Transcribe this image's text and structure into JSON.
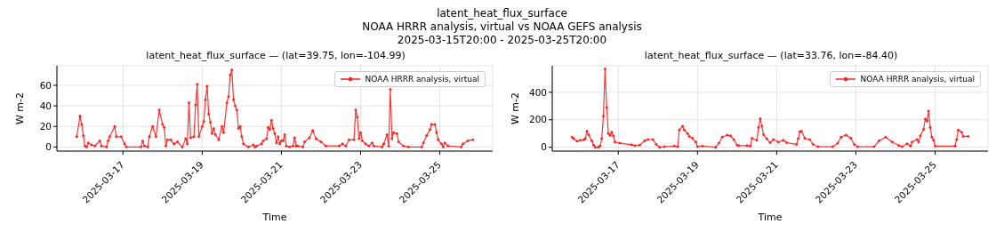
{
  "chart_data": [
    {
      "type": "line",
      "title": "latent_heat_flux_surface — (lat=39.75, lon=-104.99)",
      "annotations": [
        "latent_heat_flux_surface",
        "NOAA HRRR analysis, virtual vs NOAA GEFS analysis",
        "2025-03-15T20:00 - 2025-03-25T20:00"
      ],
      "xlabel": "Time",
      "ylabel": "W m-2",
      "xlim": [
        "2025-03-15T08:00",
        "2025-03-26T08:00"
      ],
      "xticks": [
        "2025-03-17",
        "2025-03-19",
        "2025-03-21",
        "2025-03-23",
        "2025-03-25"
      ],
      "ylim": [
        -4,
        79
      ],
      "yticks": [
        0,
        20,
        40,
        60
      ],
      "grid": true,
      "legend": "top right",
      "marker": "circle",
      "line_style": "solid",
      "series": [
        {
          "name": "NOAA HRRR analysis, virtual",
          "color": "#ff1f1f",
          "x": [
            "2025-03-15T20:00",
            "2025-03-15T22:00",
            "2025-03-15T23:00",
            "2025-03-16T00:00",
            "2025-03-16T01:00",
            "2025-03-16T02:00",
            "2025-03-16T03:00",
            "2025-03-16T05:00",
            "2025-03-16T07:00",
            "2025-03-16T10:00",
            "2025-03-16T11:00",
            "2025-03-16T14:00",
            "2025-03-16T15:00",
            "2025-03-16T16:00",
            "2025-03-16T19:00",
            "2025-03-16T20:00",
            "2025-03-16T23:00",
            "2025-03-17T01:00",
            "2025-03-17T02:00",
            "2025-03-17T11:00",
            "2025-03-17T12:00",
            "2025-03-17T13:00",
            "2025-03-17T15:00",
            "2025-03-17T16:00",
            "2025-03-17T18:00",
            "2025-03-17T20:00",
            "2025-03-17T22:00",
            "2025-03-18T00:00",
            "2025-03-18T01:00",
            "2025-03-18T02:00",
            "2025-03-18T03:00",
            "2025-03-18T05:00",
            "2025-03-18T07:00",
            "2025-03-18T09:00",
            "2025-03-18T12:00",
            "2025-03-18T14:00",
            "2025-03-18T15:00",
            "2025-03-18T16:00",
            "2025-03-18T17:00",
            "2025-03-18T19:00",
            "2025-03-18T20:00",
            "2025-03-18T21:00",
            "2025-03-18T22:00",
            "2025-03-19T00:00",
            "2025-03-19T01:00",
            "2025-03-19T02:00",
            "2025-03-19T03:00",
            "2025-03-19T04:00",
            "2025-03-19T05:00",
            "2025-03-19T06:00",
            "2025-03-19T07:00",
            "2025-03-19T08:00",
            "2025-03-19T10:00",
            "2025-03-19T12:00",
            "2025-03-19T13:00",
            "2025-03-19T15:00",
            "2025-03-19T16:00",
            "2025-03-19T17:00",
            "2025-03-19T18:00",
            "2025-03-19T19:00",
            "2025-03-19T20:00",
            "2025-03-19T21:00",
            "2025-03-19T22:00",
            "2025-03-19T23:00",
            "2025-03-20T00:00",
            "2025-03-20T01:00",
            "2025-03-20T04:00",
            "2025-03-20T07:00",
            "2025-03-20T08:00",
            "2025-03-20T09:00",
            "2025-03-20T12:00",
            "2025-03-20T13:00",
            "2025-03-20T15:00",
            "2025-03-20T16:00",
            "2025-03-20T17:00",
            "2025-03-20T18:00",
            "2025-03-20T19:00",
            "2025-03-20T20:00",
            "2025-03-20T21:00",
            "2025-03-20T22:00",
            "2025-03-20T23:00",
            "2025-03-21T00:00",
            "2025-03-21T01:00",
            "2025-03-21T02:00",
            "2025-03-21T03:00",
            "2025-03-21T05:00",
            "2025-03-21T07:00",
            "2025-03-21T08:00",
            "2025-03-21T09:00",
            "2025-03-21T10:00",
            "2025-03-21T13:00",
            "2025-03-21T14:00",
            "2025-03-21T17:00",
            "2025-03-21T19:00",
            "2025-03-21T21:00",
            "2025-03-22T00:00",
            "2025-03-22T03:00",
            "2025-03-22T11:00",
            "2025-03-22T13:00",
            "2025-03-22T15:00",
            "2025-03-22T17:00",
            "2025-03-22T20:00",
            "2025-03-22T21:00",
            "2025-03-22T22:00",
            "2025-03-22T23:00",
            "2025-03-23T00:00",
            "2025-03-23T01:00",
            "2025-03-23T03:00",
            "2025-03-23T05:00",
            "2025-03-23T07:00",
            "2025-03-23T08:00",
            "2025-03-23T13:00",
            "2025-03-23T14:00",
            "2025-03-23T16:00",
            "2025-03-23T17:00",
            "2025-03-23T18:00",
            "2025-03-23T19:00",
            "2025-03-23T20:00",
            "2025-03-23T22:00",
            "2025-03-23T23:00",
            "2025-03-24T02:00",
            "2025-03-24T05:00",
            "2025-03-24T13:00",
            "2025-03-24T14:00",
            "2025-03-24T16:00",
            "2025-03-24T18:00",
            "2025-03-24T19:00",
            "2025-03-24T21:00",
            "2025-03-24T22:00",
            "2025-03-24T23:00",
            "2025-03-25T01:00",
            "2025-03-25T02:00",
            "2025-03-25T03:00",
            "2025-03-25T05:00",
            "2025-03-25T13:00",
            "2025-03-25T14:00",
            "2025-03-25T17:00",
            "2025-03-25T20:00"
          ],
          "values": [
            10,
            30,
            22,
            11,
            1,
            0,
            4,
            2,
            1,
            6,
            1,
            0,
            6,
            10,
            20,
            10,
            10,
            3,
            0,
            0,
            6,
            1,
            0,
            10,
            20,
            10,
            36,
            22,
            19,
            1,
            7,
            7,
            3,
            5,
            0,
            8,
            3,
            43,
            9,
            10,
            41,
            61,
            10,
            20,
            25,
            46,
            59,
            32,
            24,
            13,
            18,
            12,
            7,
            20,
            14,
            43,
            49,
            70,
            75,
            46,
            40,
            36,
            18,
            20,
            10,
            3,
            0,
            2,
            0,
            1,
            3,
            6,
            8,
            19,
            17,
            26,
            18,
            13,
            4,
            10,
            3,
            6,
            6,
            12,
            1,
            0,
            1,
            9,
            1,
            1,
            0,
            5,
            9,
            16,
            8,
            5,
            1,
            1,
            3,
            1,
            7,
            7,
            36,
            29,
            8,
            14,
            6,
            3,
            1,
            4,
            1,
            0,
            3,
            12,
            1,
            56,
            8,
            14,
            13,
            5,
            1,
            0,
            0,
            4,
            11,
            17,
            22,
            22,
            14,
            7,
            3,
            0,
            4,
            1,
            0,
            3,
            6,
            7
          ]
        }
      ]
    },
    {
      "type": "line",
      "title": "latent_heat_flux_surface — (lat=33.76, lon=-84.40)",
      "xlabel": "Time",
      "ylabel": "W m-2",
      "xlim": [
        "2025-03-15T08:00",
        "2025-03-26T08:00"
      ],
      "xticks": [
        "2025-03-17",
        "2025-03-19",
        "2025-03-21",
        "2025-03-23",
        "2025-03-25"
      ],
      "ylim": [
        -28,
        593
      ],
      "yticks": [
        0,
        200,
        400
      ],
      "grid": true,
      "legend": "top right",
      "marker": "circle",
      "line_style": "solid",
      "series": [
        {
          "name": "NOAA HRRR analysis, virtual",
          "color": "#ff1f1f",
          "x": [
            "2025-03-15T20:00",
            "2025-03-15T21:00",
            "2025-03-15T23:00",
            "2025-03-16T01:00",
            "2025-03-16T03:00",
            "2025-03-16T04:00",
            "2025-03-16T05:00",
            "2025-03-16T06:00",
            "2025-03-16T08:00",
            "2025-03-16T09:00",
            "2025-03-16T10:00",
            "2025-03-16T12:00",
            "2025-03-16T13:00",
            "2025-03-16T14:00",
            "2025-03-16T15:00",
            "2025-03-16T16:00",
            "2025-03-16T17:00",
            "2025-03-16T18:00",
            "2025-03-16T19:00",
            "2025-03-16T20:00",
            "2025-03-16T21:00",
            "2025-03-16T22:00",
            "2025-03-17T01:00",
            "2025-03-17T08:00",
            "2025-03-17T10:00",
            "2025-03-17T13:00",
            "2025-03-17T16:00",
            "2025-03-17T18:00",
            "2025-03-17T21:00",
            "2025-03-17T23:00",
            "2025-03-18T01:00",
            "2025-03-18T04:00",
            "2025-03-18T10:00",
            "2025-03-18T12:00",
            "2025-03-18T13:00",
            "2025-03-18T15:00",
            "2025-03-18T16:00",
            "2025-03-18T18:00",
            "2025-03-18T19:00",
            "2025-03-18T21:00",
            "2025-03-18T23:00",
            "2025-03-19T00:00",
            "2025-03-19T03:00",
            "2025-03-19T11:00",
            "2025-03-19T13:00",
            "2025-03-19T15:00",
            "2025-03-19T18:00",
            "2025-03-19T20:00",
            "2025-03-19T22:00",
            "2025-03-20T00:00",
            "2025-03-20T01:00",
            "2025-03-20T06:00",
            "2025-03-20T08:00",
            "2025-03-20T09:00",
            "2025-03-20T12:00",
            "2025-03-20T13:00",
            "2025-03-20T14:00",
            "2025-03-20T15:00",
            "2025-03-20T16:00",
            "2025-03-20T18:00",
            "2025-03-20T20:00",
            "2025-03-20T22:00",
            "2025-03-21T01:00",
            "2025-03-21T04:00",
            "2025-03-21T06:00",
            "2025-03-21T12:00",
            "2025-03-21T13:00",
            "2025-03-21T14:00",
            "2025-03-21T15:00",
            "2025-03-21T17:00",
            "2025-03-21T20:00",
            "2025-03-21T22:00",
            "2025-03-22T01:00",
            "2025-03-22T10:00",
            "2025-03-22T13:00",
            "2025-03-22T15:00",
            "2025-03-22T18:00",
            "2025-03-22T21:00",
            "2025-03-22T23:00",
            "2025-03-23T01:00",
            "2025-03-23T11:00",
            "2025-03-23T14:00",
            "2025-03-23T18:00",
            "2025-03-23T22:00",
            "2025-03-24T02:00",
            "2025-03-24T04:00",
            "2025-03-24T07:00",
            "2025-03-24T09:00",
            "2025-03-24T10:00",
            "2025-03-24T13:00",
            "2025-03-24T14:00",
            "2025-03-24T15:00",
            "2025-03-24T17:00",
            "2025-03-24T18:00",
            "2025-03-24T19:00",
            "2025-03-24T20:00",
            "2025-03-24T21:00",
            "2025-03-24T22:00",
            "2025-03-24T23:00",
            "2025-03-25T00:00",
            "2025-03-25T12:00",
            "2025-03-25T13:00",
            "2025-03-25T14:00",
            "2025-03-25T16:00",
            "2025-03-25T17:00",
            "2025-03-25T20:00"
          ],
          "values": [
            74,
            62,
            44,
            51,
            54,
            62,
            117,
            91,
            47,
            16,
            0,
            0,
            9,
            62,
            226,
            570,
            289,
            100,
            86,
            109,
            83,
            38,
            30,
            18,
            12,
            16,
            47,
            56,
            56,
            21,
            0,
            4,
            9,
            4,
            126,
            153,
            126,
            100,
            79,
            65,
            38,
            4,
            9,
            0,
            30,
            74,
            88,
            83,
            56,
            16,
            12,
            12,
            9,
            65,
            51,
            144,
            207,
            153,
            91,
            62,
            33,
            56,
            38,
            51,
            33,
            21,
            62,
            112,
            117,
            65,
            56,
            21,
            4,
            4,
            30,
            74,
            88,
            65,
            21,
            4,
            4,
            47,
            74,
            38,
            12,
            4,
            25,
            9,
            38,
            56,
            38,
            83,
            131,
            205,
            191,
            263,
            144,
            74,
            51,
            9,
            9,
            56,
            126,
            109,
            79,
            79
          ]
        }
      ]
    }
  ]
}
